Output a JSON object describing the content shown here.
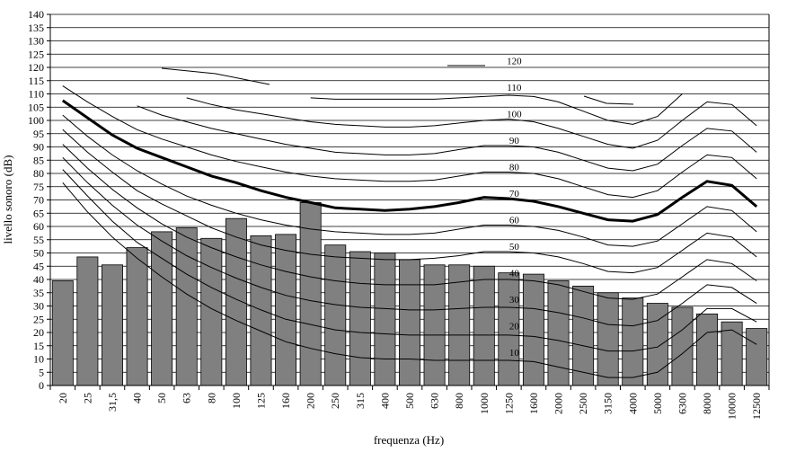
{
  "chart_data": {
    "type": "bar",
    "xlabel": "frequenza (Hz)",
    "ylabel": "livello sonoro (dB)",
    "ylim": [
      0,
      140
    ],
    "y_ticks": [
      "0",
      "5",
      "10",
      "15",
      "20",
      "25",
      "30",
      "35",
      "40",
      "45",
      "50",
      "55",
      "60",
      "65",
      "70",
      "75",
      "80",
      "85",
      "90",
      "95",
      "100",
      "105",
      "110",
      "115",
      "120",
      "125",
      "130",
      "135",
      "140"
    ],
    "grid": "horizontal every 5 dB",
    "categories": [
      "20",
      "25",
      "31,5",
      "40",
      "50",
      "63",
      "80",
      "100",
      "125",
      "160",
      "200",
      "250",
      "315",
      "400",
      "500",
      "630",
      "800",
      "1000",
      "1250",
      "1600",
      "2000",
      "2500",
      "3150",
      "4000",
      "5000",
      "6300",
      "8000",
      "10000",
      "12500"
    ],
    "values": [
      39.5,
      48.5,
      45.5,
      52,
      58,
      59.5,
      55.5,
      63,
      56.5,
      57,
      69,
      53,
      50.5,
      50,
      47.5,
      45.5,
      45.5,
      45,
      42.5,
      42,
      39.5,
      37.5,
      35,
      33,
      31,
      29.5,
      27,
      24,
      21.5
    ],
    "bar_color": "#808080",
    "highlight_curve": {
      "name": "70",
      "values": [
        107.5,
        101,
        94.5,
        89.5,
        86,
        82.5,
        79,
        76.5,
        73.5,
        71,
        69,
        67,
        66.5,
        66,
        66.5,
        67.5,
        69,
        71,
        70.5,
        69.5,
        67.5,
        65,
        62.5,
        62,
        64.5,
        71,
        77,
        75.5,
        67.5
      ]
    },
    "curves": [
      {
        "name": "10",
        "values": [
          76.5,
          65.5,
          56,
          48,
          41,
          34.5,
          29,
          24.5,
          20.5,
          16.5,
          14,
          12,
          10.5,
          10,
          10,
          9.5,
          9.5,
          9.5,
          9.5,
          9,
          7,
          5,
          3,
          3,
          5,
          12,
          20,
          21,
          15.5
        ]
      },
      {
        "name": "20",
        "values": [
          81.5,
          71.5,
          62,
          54,
          48,
          42,
          37,
          32.5,
          28.5,
          25,
          23,
          21,
          20,
          19.5,
          19,
          19,
          19,
          19,
          19,
          18.5,
          17,
          15,
          13,
          13,
          14.5,
          21,
          29,
          29,
          24
        ]
      },
      {
        "name": "30",
        "values": [
          86,
          76.5,
          68,
          60.5,
          54.5,
          49,
          44.5,
          40.5,
          37,
          34,
          32,
          30.5,
          29.5,
          29,
          28.5,
          28.5,
          29,
          29.5,
          29.5,
          29,
          27.5,
          25.5,
          23,
          22.5,
          24.5,
          31,
          38,
          37,
          31
        ]
      },
      {
        "name": "40",
        "values": [
          91,
          82,
          74,
          67,
          61,
          56,
          52,
          48.5,
          45.5,
          43,
          41,
          39.5,
          38.5,
          38,
          38,
          38,
          39,
          40,
          40,
          39.5,
          38,
          35.5,
          33,
          32.5,
          34.5,
          41,
          47.5,
          46,
          39.5
        ]
      },
      {
        "name": "50",
        "values": [
          96.5,
          88,
          80.5,
          73.5,
          68.5,
          64,
          59.5,
          56,
          53,
          51,
          49.5,
          48.5,
          48,
          47.5,
          47.5,
          48,
          49,
          50.5,
          50.5,
          50,
          48.5,
          46,
          43,
          42.5,
          44.5,
          51,
          57.5,
          56,
          48.5
        ]
      },
      {
        "name": "60",
        "values": [
          102,
          94,
          87,
          81,
          76,
          71.5,
          68,
          65,
          62.5,
          60.5,
          59,
          58,
          57.5,
          57,
          57,
          57.5,
          59,
          60.5,
          60.5,
          60,
          58.5,
          56,
          53,
          52.5,
          54.5,
          61,
          67.5,
          66,
          58
        ]
      },
      {
        "name": "80",
        "values": [
          113,
          107,
          101.5,
          96.5,
          93,
          90,
          87,
          84.5,
          82.5,
          80.5,
          79,
          78,
          77.5,
          77,
          77,
          77.5,
          79,
          80.5,
          80.5,
          80,
          78,
          75,
          72,
          71,
          73.5,
          80.5,
          87,
          86,
          78
        ]
      },
      {
        "name": "90",
        "values": [
          null,
          null,
          null,
          105.5,
          102,
          99.5,
          97,
          95,
          93,
          91,
          89.5,
          88,
          87.5,
          87,
          87,
          87.5,
          89,
          90.5,
          90.5,
          90,
          88,
          85,
          82,
          81,
          83.5,
          90.5,
          97,
          96,
          88
        ]
      },
      {
        "name": "100",
        "values": [
          null,
          null,
          null,
          null,
          null,
          108.5,
          106,
          104,
          102.5,
          101,
          99.5,
          98.5,
          98,
          97.5,
          97.5,
          98,
          99,
          100,
          100.5,
          99.5,
          97,
          94,
          91,
          89.5,
          92.5,
          100,
          107,
          106,
          98
        ]
      },
      {
        "name": "110",
        "values": [
          null,
          null,
          null,
          null,
          null,
          null,
          null,
          null,
          null,
          null,
          108.5,
          108,
          108,
          108,
          108,
          108,
          108.5,
          109,
          109.5,
          109,
          107,
          103.5,
          100,
          98.5,
          101.5,
          110,
          null,
          null,
          null
        ]
      },
      {
        "name": "120",
        "values": [
          null,
          null,
          null,
          null,
          null,
          null,
          null,
          null,
          null,
          null,
          null,
          null,
          null,
          null,
          null,
          null,
          null,
          null,
          null,
          null,
          null,
          null,
          null,
          null,
          null,
          null,
          null,
          null,
          null
        ]
      }
    ]
  }
}
